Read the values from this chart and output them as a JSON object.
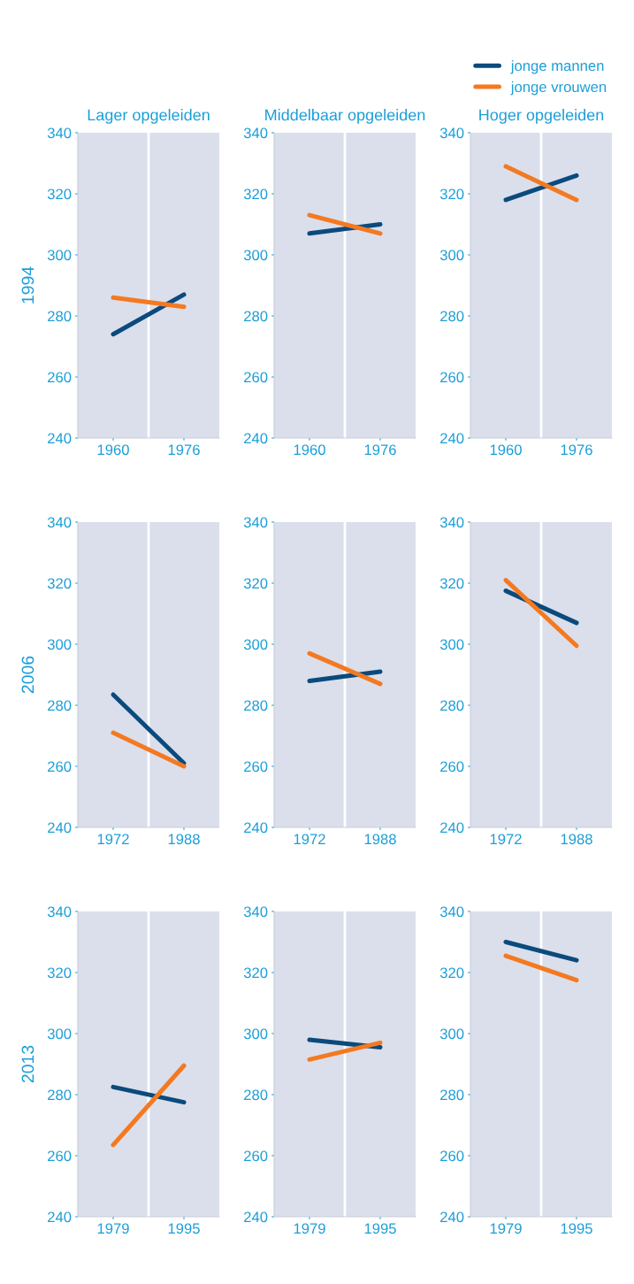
{
  "chart_data": [
    {
      "type": "line",
      "title": "Lager opgeleiden",
      "ylabel": "1994",
      "x": [
        1960,
        1976
      ],
      "xlim": [
        1952,
        1984
      ],
      "xticks": [
        1960,
        1976
      ],
      "ylim": [
        240,
        340
      ],
      "yticks": [
        240,
        260,
        280,
        300,
        320,
        340
      ],
      "grid": false,
      "ref_lines": [
        {
          "axis": "x",
          "value": 1968,
          "color": "#ffffff"
        }
      ],
      "series": [
        {
          "color": "#0b4a7c",
          "values": [
            274,
            287
          ]
        },
        {
          "color": "#f47920",
          "values": [
            286,
            283
          ]
        }
      ]
    },
    {
      "type": "line",
      "title": "Middelbaar opgeleiden",
      "x": [
        1960,
        1976
      ],
      "xlim": [
        1952,
        1984
      ],
      "xticks": [
        1960,
        1976
      ],
      "ylim": [
        240,
        340
      ],
      "yticks": [
        240,
        260,
        280,
        300,
        320,
        340
      ],
      "grid": false,
      "ref_lines": [
        {
          "axis": "x",
          "value": 1968,
          "color": "#ffffff"
        }
      ],
      "series": [
        {
          "color": "#0b4a7c",
          "values": [
            307,
            310
          ]
        },
        {
          "color": "#f47920",
          "values": [
            313,
            307
          ]
        }
      ]
    },
    {
      "type": "line",
      "title": "Hoger opgeleiden",
      "legend": "top",
      "x": [
        1960,
        1976
      ],
      "xlim": [
        1952,
        1984
      ],
      "xticks": [
        1960,
        1976
      ],
      "ylim": [
        240,
        340
      ],
      "yticks": [
        240,
        260,
        280,
        300,
        320,
        340
      ],
      "grid": false,
      "ref_lines": [
        {
          "axis": "x",
          "value": 1968,
          "color": "#ffffff"
        }
      ],
      "series": [
        {
          "name": "jonge mannen",
          "color": "#0b4a7c",
          "values": [
            318,
            326
          ]
        },
        {
          "name": "jonge vrouwen",
          "color": "#f47920",
          "values": [
            329,
            318
          ]
        }
      ]
    },
    {
      "type": "line",
      "ylabel": "2006",
      "x": [
        1972,
        1988
      ],
      "xlim": [
        1964,
        1996
      ],
      "xticks": [
        1972,
        1988
      ],
      "ylim": [
        240,
        340
      ],
      "yticks": [
        240,
        260,
        280,
        300,
        320,
        340
      ],
      "grid": false,
      "ref_lines": [
        {
          "axis": "x",
          "value": 1980,
          "color": "#ffffff"
        }
      ],
      "series": [
        {
          "color": "#0b4a7c",
          "values": [
            283.5,
            261
          ]
        },
        {
          "color": "#f47920",
          "values": [
            271,
            260
          ]
        }
      ]
    },
    {
      "type": "line",
      "x": [
        1972,
        1988
      ],
      "xlim": [
        1964,
        1996
      ],
      "xticks": [
        1972,
        1988
      ],
      "ylim": [
        240,
        340
      ],
      "yticks": [
        240,
        260,
        280,
        300,
        320,
        340
      ],
      "grid": false,
      "ref_lines": [
        {
          "axis": "x",
          "value": 1980,
          "color": "#ffffff"
        }
      ],
      "series": [
        {
          "color": "#0b4a7c",
          "values": [
            288,
            291
          ]
        },
        {
          "color": "#f47920",
          "values": [
            297,
            287
          ]
        }
      ]
    },
    {
      "type": "line",
      "x": [
        1972,
        1988
      ],
      "xlim": [
        1964,
        1996
      ],
      "xticks": [
        1972,
        1988
      ],
      "ylim": [
        240,
        340
      ],
      "yticks": [
        240,
        260,
        280,
        300,
        320,
        340
      ],
      "grid": false,
      "ref_lines": [
        {
          "axis": "x",
          "value": 1980,
          "color": "#ffffff"
        }
      ],
      "series": [
        {
          "color": "#0b4a7c",
          "values": [
            317.5,
            307
          ]
        },
        {
          "color": "#f47920",
          "values": [
            321,
            299.5
          ]
        }
      ]
    },
    {
      "type": "line",
      "ylabel": "2013",
      "x": [
        1979,
        1995
      ],
      "xlim": [
        1971,
        2003
      ],
      "xticks": [
        1979,
        1995
      ],
      "ylim": [
        240,
        340
      ],
      "yticks": [
        240,
        260,
        280,
        300,
        320,
        340
      ],
      "grid": false,
      "ref_lines": [
        {
          "axis": "x",
          "value": 1987,
          "color": "#ffffff"
        }
      ],
      "series": [
        {
          "color": "#0b4a7c",
          "values": [
            282.5,
            277.5
          ]
        },
        {
          "color": "#f47920",
          "values": [
            263.5,
            289.5
          ]
        }
      ]
    },
    {
      "type": "line",
      "x": [
        1979,
        1995
      ],
      "xlim": [
        1971,
        2003
      ],
      "xticks": [
        1979,
        1995
      ],
      "ylim": [
        240,
        340
      ],
      "yticks": [
        240,
        260,
        280,
        300,
        320,
        340
      ],
      "grid": false,
      "ref_lines": [
        {
          "axis": "x",
          "value": 1987,
          "color": "#ffffff"
        }
      ],
      "series": [
        {
          "color": "#0b4a7c",
          "values": [
            298,
            295.5
          ]
        },
        {
          "color": "#f47920",
          "values": [
            291.5,
            297
          ]
        }
      ]
    },
    {
      "type": "line",
      "x": [
        1979,
        1995
      ],
      "xlim": [
        1971,
        2003
      ],
      "xticks": [
        1979,
        1995
      ],
      "ylim": [
        240,
        340
      ],
      "yticks": [
        240,
        260,
        280,
        300,
        320,
        340
      ],
      "grid": false,
      "ref_lines": [
        {
          "axis": "x",
          "value": 1987,
          "color": "#ffffff"
        }
      ],
      "series": [
        {
          "color": "#0b4a7c",
          "values": [
            330,
            324
          ]
        },
        {
          "color": "#f47920",
          "values": [
            325.5,
            317.5
          ]
        }
      ]
    }
  ]
}
